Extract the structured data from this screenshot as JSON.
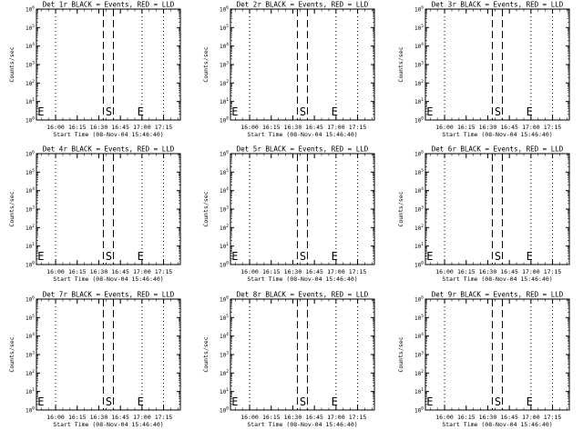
{
  "chart_data": [
    {
      "type": "line",
      "title": "Det 1r BLACK = Events, RED = LLD"
    },
    {
      "type": "line",
      "title": "Det 2r BLACK = Events, RED = LLD"
    },
    {
      "type": "line",
      "title": "Det 3r BLACK = Events, RED = LLD"
    },
    {
      "type": "line",
      "title": "Det 4r BLACK = Events, RED = LLD"
    },
    {
      "type": "line",
      "title": "Det 5r BLACK = Events, RED = LLD"
    },
    {
      "type": "line",
      "title": "Det 6r BLACK = Events, RED = LLD"
    },
    {
      "type": "line",
      "title": "Det 7r BLACK = Events, RED = LLD"
    },
    {
      "type": "line",
      "title": "Det 8r BLACK = Events, RED = LLD"
    },
    {
      "type": "line",
      "title": "Det 9r BLACK = Events, RED = LLD"
    }
  ],
  "shared": {
    "ylabel": "Counts/sec",
    "xlabel": "Start Time (08-Nov-04 15:46:40)",
    "xlim_min": [
      0,
      100
    ],
    "ylim_exp": [
      0,
      6
    ],
    "yscale": "log",
    "xticks_min": [
      13.33,
      28.33,
      43.33,
      58.33,
      73.33,
      88.33
    ],
    "xtick_labels": [
      "16:00",
      "16:15",
      "16:30",
      "16:45",
      "17:00",
      "17:15"
    ],
    "ytick_exp": [
      0,
      1,
      2,
      3,
      4,
      5,
      6
    ],
    "ytick_base": "10",
    "dotted_lines_min": [
      13.33,
      73.33,
      88.33
    ],
    "dashed_lines_min": [
      46.5,
      53.5
    ],
    "markers": [
      {
        "label": "E",
        "x_min": 0.8
      },
      {
        "label": "S",
        "x_min": 48
      },
      {
        "label": "E",
        "x_min": 70
      }
    ]
  }
}
